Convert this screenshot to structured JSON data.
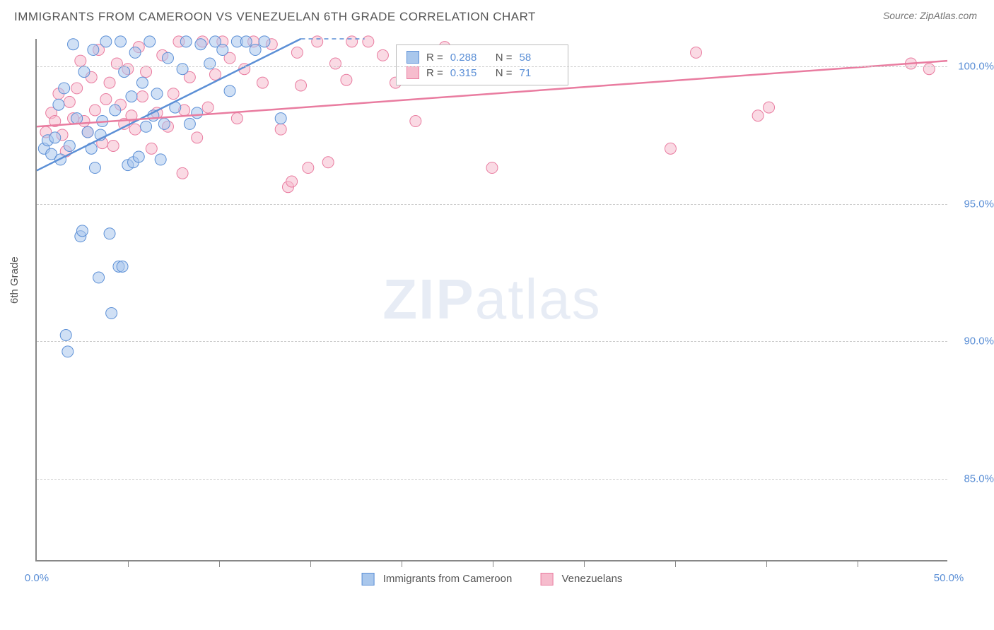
{
  "title": "IMMIGRANTS FROM CAMEROON VS VENEZUELAN 6TH GRADE CORRELATION CHART",
  "source": "Source: ZipAtlas.com",
  "ylabel": "6th Grade",
  "watermark_bold": "ZIP",
  "watermark_light": "atlas",
  "chart": {
    "type": "scatter",
    "background_color": "#ffffff",
    "grid_color": "#cccccc",
    "axis_color": "#888888",
    "xlim": [
      0,
      50
    ],
    "ylim": [
      82,
      101
    ],
    "xticks": [
      0,
      50
    ],
    "xtick_minor": [
      5,
      10,
      15,
      20,
      25,
      30,
      35,
      40,
      45
    ],
    "xtick_labels": [
      "0.0%",
      "50.0%"
    ],
    "yticks": [
      85,
      90,
      95,
      100
    ],
    "ytick_labels": [
      "85.0%",
      "90.0%",
      "95.0%",
      "100.0%"
    ],
    "marker_radius": 8,
    "marker_opacity": 0.55,
    "line_width": 2.5,
    "tick_label_color": "#5b8fd6",
    "tick_label_fontsize": 15,
    "title_fontsize": 17,
    "title_color": "#555555"
  },
  "series": [
    {
      "name": "Immigrants from Cameroon",
      "color_fill": "#a9c7ec",
      "color_stroke": "#5b8fd6",
      "r_label": "R =",
      "r_value": "0.288",
      "n_label": "N =",
      "n_value": "58",
      "regression": {
        "x1": 0,
        "y1": 96.2,
        "x2": 14.5,
        "y2": 101,
        "dash_x1": 14.5,
        "dash_y1": 101,
        "dash_x2": 18,
        "dash_y2": 101
      },
      "points": [
        [
          0.4,
          97.0
        ],
        [
          0.6,
          97.3
        ],
        [
          0.8,
          96.8
        ],
        [
          1.0,
          97.4
        ],
        [
          1.2,
          98.6
        ],
        [
          1.3,
          96.6
        ],
        [
          1.5,
          99.2
        ],
        [
          1.6,
          90.2
        ],
        [
          1.7,
          89.6
        ],
        [
          1.8,
          97.1
        ],
        [
          2.0,
          100.8
        ],
        [
          2.2,
          98.1
        ],
        [
          2.4,
          93.8
        ],
        [
          2.5,
          94.0
        ],
        [
          2.6,
          99.8
        ],
        [
          2.8,
          97.6
        ],
        [
          3.0,
          97.0
        ],
        [
          3.1,
          100.6
        ],
        [
          3.2,
          96.3
        ],
        [
          3.4,
          92.3
        ],
        [
          3.5,
          97.5
        ],
        [
          3.6,
          98.0
        ],
        [
          3.8,
          100.9
        ],
        [
          4.0,
          93.9
        ],
        [
          4.1,
          91.0
        ],
        [
          4.3,
          98.4
        ],
        [
          4.5,
          92.7
        ],
        [
          4.6,
          100.9
        ],
        [
          4.7,
          92.7
        ],
        [
          4.8,
          99.8
        ],
        [
          5.0,
          96.4
        ],
        [
          5.2,
          98.9
        ],
        [
          5.3,
          96.5
        ],
        [
          5.4,
          100.5
        ],
        [
          5.6,
          96.7
        ],
        [
          5.8,
          99.4
        ],
        [
          6.0,
          97.8
        ],
        [
          6.2,
          100.9
        ],
        [
          6.4,
          98.2
        ],
        [
          6.6,
          99.0
        ],
        [
          6.8,
          96.6
        ],
        [
          7.0,
          97.9
        ],
        [
          7.2,
          100.3
        ],
        [
          7.6,
          98.5
        ],
        [
          8.0,
          99.9
        ],
        [
          8.2,
          100.9
        ],
        [
          8.4,
          97.9
        ],
        [
          8.8,
          98.3
        ],
        [
          9.0,
          100.8
        ],
        [
          9.5,
          100.1
        ],
        [
          9.8,
          100.9
        ],
        [
          10.2,
          100.6
        ],
        [
          10.6,
          99.1
        ],
        [
          11.0,
          100.9
        ],
        [
          11.5,
          100.9
        ],
        [
          12.0,
          100.6
        ],
        [
          12.5,
          100.9
        ],
        [
          13.4,
          98.1
        ]
      ]
    },
    {
      "name": "Venezuelans",
      "color_fill": "#f6bccd",
      "color_stroke": "#e97ca0",
      "r_label": "R =",
      "r_value": "0.315",
      "n_label": "N =",
      "n_value": "71",
      "regression": {
        "x1": 0,
        "y1": 97.8,
        "x2": 50,
        "y2": 100.2
      },
      "points": [
        [
          0.5,
          97.6
        ],
        [
          0.8,
          98.3
        ],
        [
          1.0,
          98.0
        ],
        [
          1.2,
          99.0
        ],
        [
          1.4,
          97.5
        ],
        [
          1.6,
          96.9
        ],
        [
          1.8,
          98.7
        ],
        [
          2.0,
          98.1
        ],
        [
          2.2,
          99.2
        ],
        [
          2.4,
          100.2
        ],
        [
          2.6,
          98.0
        ],
        [
          2.8,
          97.6
        ],
        [
          3.0,
          99.6
        ],
        [
          3.2,
          98.4
        ],
        [
          3.4,
          100.6
        ],
        [
          3.6,
          97.2
        ],
        [
          3.8,
          98.8
        ],
        [
          4.0,
          99.4
        ],
        [
          4.2,
          97.1
        ],
        [
          4.4,
          100.1
        ],
        [
          4.6,
          98.6
        ],
        [
          4.8,
          97.9
        ],
        [
          5.0,
          99.9
        ],
        [
          5.2,
          98.2
        ],
        [
          5.4,
          97.7
        ],
        [
          5.6,
          100.7
        ],
        [
          5.8,
          98.9
        ],
        [
          6.0,
          99.8
        ],
        [
          6.3,
          97.0
        ],
        [
          6.6,
          98.3
        ],
        [
          6.9,
          100.4
        ],
        [
          7.2,
          97.8
        ],
        [
          7.5,
          99.0
        ],
        [
          7.8,
          100.9
        ],
        [
          8.1,
          98.4
        ],
        [
          8.4,
          99.6
        ],
        [
          8.8,
          97.4
        ],
        [
          9.1,
          100.9
        ],
        [
          9.4,
          98.5
        ],
        [
          9.8,
          99.7
        ],
        [
          10.2,
          100.9
        ],
        [
          10.6,
          100.3
        ],
        [
          11.0,
          98.1
        ],
        [
          11.4,
          99.9
        ],
        [
          11.9,
          100.9
        ],
        [
          12.4,
          99.4
        ],
        [
          12.9,
          100.8
        ],
        [
          13.4,
          97.7
        ],
        [
          13.8,
          95.6
        ],
        [
          14.3,
          100.5
        ],
        [
          14.5,
          99.3
        ],
        [
          14.9,
          96.3
        ],
        [
          15.4,
          100.9
        ],
        [
          16.0,
          96.5
        ],
        [
          16.4,
          100.1
        ],
        [
          17.0,
          99.5
        ],
        [
          17.3,
          100.9
        ],
        [
          18.2,
          100.9
        ],
        [
          19.0,
          100.4
        ],
        [
          19.7,
          99.4
        ],
        [
          20.8,
          98.0
        ],
        [
          22.4,
          100.7
        ],
        [
          25.0,
          96.3
        ],
        [
          34.8,
          97.0
        ],
        [
          36.2,
          100.5
        ],
        [
          39.6,
          98.2
        ],
        [
          40.2,
          98.5
        ],
        [
          48.0,
          100.1
        ],
        [
          49.0,
          99.9
        ],
        [
          14.0,
          95.8
        ],
        [
          8.0,
          96.1
        ]
      ]
    }
  ],
  "bottom_legend": [
    {
      "swatch_fill": "#a9c7ec",
      "swatch_stroke": "#5b8fd6",
      "label": "Immigrants from Cameroon"
    },
    {
      "swatch_fill": "#f6bccd",
      "swatch_stroke": "#e97ca0",
      "label": "Venezuelans"
    }
  ]
}
